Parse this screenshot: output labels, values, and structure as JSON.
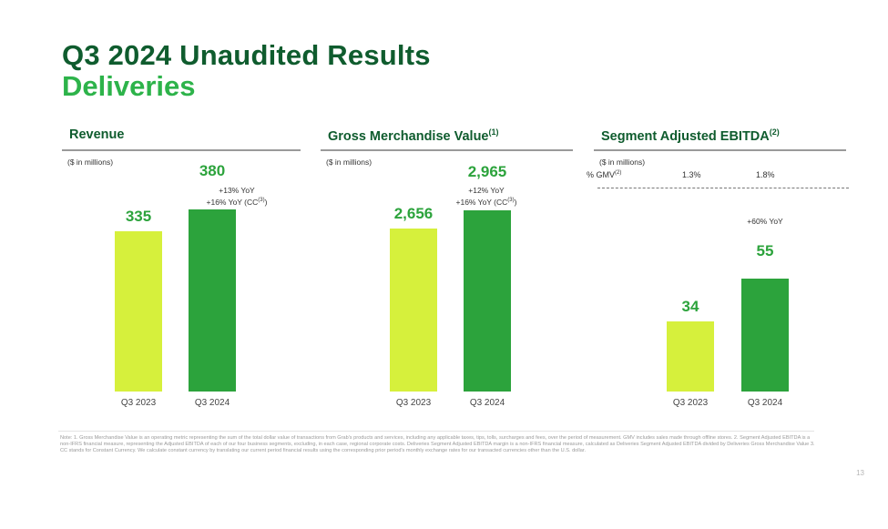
{
  "header": {
    "title": "Q3 2024 Unaudited Results",
    "subtitle": "Deliveries"
  },
  "chart_data": [
    {
      "type": "bar",
      "title": "Revenue",
      "unit_note": "($ in millions)",
      "categories": [
        "Q3 2023",
        "Q3 2024"
      ],
      "values": [
        335,
        380
      ],
      "value_labels": [
        "335",
        "380"
      ],
      "annotations": {
        "yoy": "+13% YoY",
        "cc_prefix": "+16% YoY (CC",
        "cc_ref": "(3)",
        "cc_suffix": ")"
      },
      "ylim": [
        0,
        430
      ],
      "colors": [
        "#d6f03c",
        "#2ca33c"
      ]
    },
    {
      "type": "bar",
      "title": "Gross Merchandise Value",
      "title_ref": "(1)",
      "unit_note": "($ in millions)",
      "categories": [
        "Q3 2023",
        "Q3 2024"
      ],
      "values": [
        2656,
        2965
      ],
      "value_labels": [
        "2,656",
        "2,965"
      ],
      "annotations": {
        "yoy": "+12% YoY",
        "cc_prefix": "+16% YoY (CC",
        "cc_ref": "(3)",
        "cc_suffix": ")"
      },
      "ylim": [
        0,
        3360
      ],
      "colors": [
        "#d6f03c",
        "#2ca33c"
      ]
    },
    {
      "type": "bar",
      "title": "Segment Adjusted EBITDA",
      "title_ref": "(2)",
      "unit_note": "($ in millions)",
      "gmv_label": "% GMV",
      "gmv_ref": "(2)",
      "gmv_values": [
        "1.3%",
        "1.8%"
      ],
      "categories": [
        "Q3 2023",
        "Q3 2024"
      ],
      "values": [
        34,
        55
      ],
      "value_labels": [
        "34",
        "55"
      ],
      "annotations": {
        "yoy": "+60% YoY"
      },
      "ylim": [
        0,
        100
      ],
      "colors": [
        "#d6f03c",
        "#2ca33c"
      ]
    }
  ],
  "footnote": "Note: 1. Gross Merchandise Value is an operating metric representing the sum of the total dollar value of transactions from Grab's products and services, including any applicable taxes, tips, tolls, surcharges and fees, over the period of measurement. GMV includes sales made through offline stores. 2. Segment Adjusted EBITDA is a non-IFRS financial measure, representing the Adjusted EBITDA of each of our four business segments, excluding, in each case, regional corporate costs. Deliveries Segment Adjusted EBITDA margin is a non-IFRS financial measure, calculated as Deliveries Segment Adjusted EBITDA divided by Deliveries Gross Merchandise Value 3. CC stands for Constant Currency. We calculate constant currency by translating our current period financial results using the corresponding prior period's monthly exchange rates for our transacted currencies other than the U.S. dollar.",
  "page_number": "13"
}
